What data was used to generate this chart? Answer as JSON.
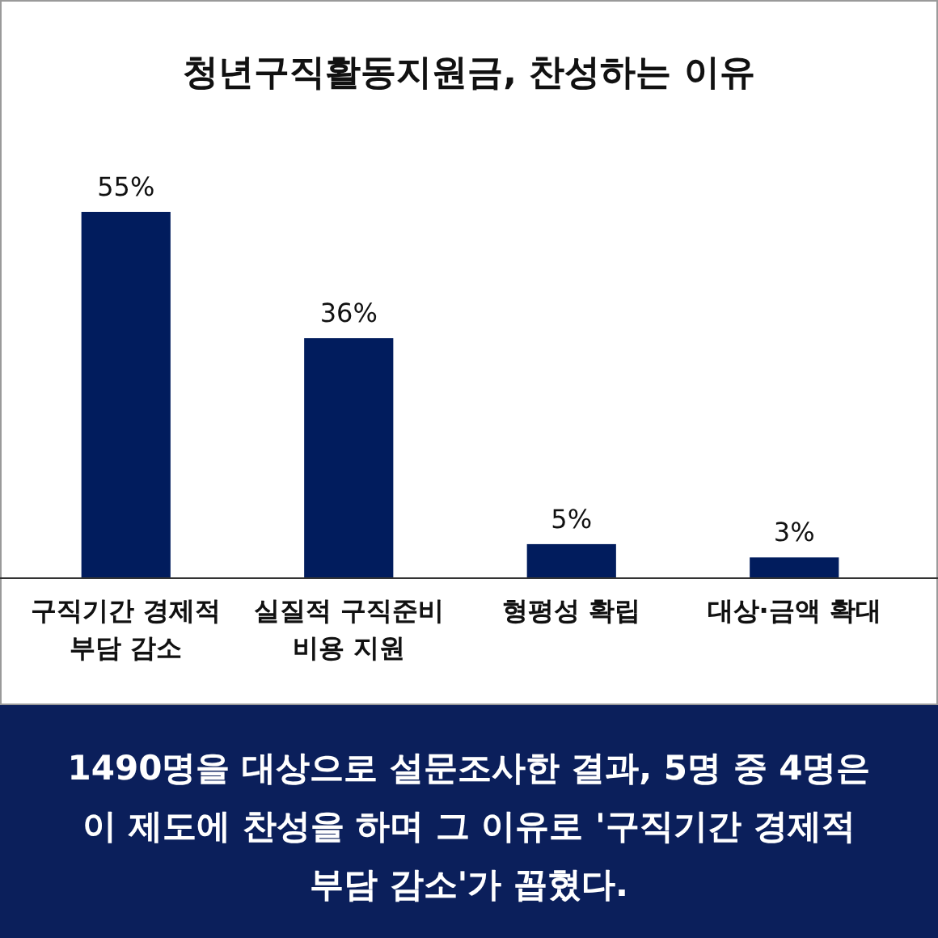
{
  "chart_data": {
    "type": "bar",
    "title": "청년구직활동지원금, 찬성하는 이유",
    "categories": [
      "구직기간 경제적 부담 감소",
      "실질적 구직준비 비용 지원",
      "형평성 확립",
      "대상·금액 확대"
    ],
    "values": [
      55,
      36,
      5,
      3
    ],
    "value_labels": [
      "55%",
      "36%",
      "5%",
      "3%"
    ],
    "color": "#011c5d",
    "annotations": [
      "1490명을 대상으로 설문조사한 결과, 5명 중 4명은 이 제도에 찬성을 하며 그 이유로 '구직기간 경제적 부담 감소'가 꼽혔다."
    ]
  }
}
